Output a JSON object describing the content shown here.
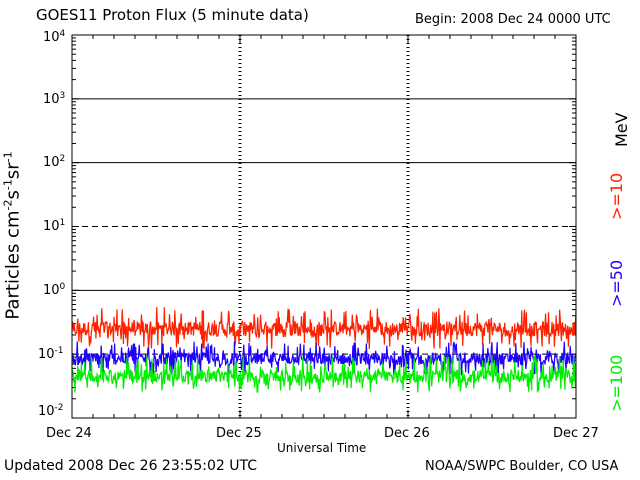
{
  "header": {
    "title": "GOES11 Proton Flux (5 minute data)",
    "begin": "Begin: 2008 Dec 24 0000 UTC"
  },
  "footer": {
    "updated": "Updated 2008 Dec 26 23:55:02 UTC",
    "credit": "NOAA/SWPC Boulder, CO USA"
  },
  "axes": {
    "xlabel": "Universal Time",
    "ylabel_main": "Particles cm",
    "ylabel_exp1": "-2",
    "ylabel_s": "s",
    "ylabel_exp2": "-1",
    "ylabel_sr": "sr",
    "ylabel_exp3": "-1",
    "x_ticks": [
      "Dec 24",
      "Dec 25",
      "Dec 26",
      "Dec 27"
    ],
    "y_ticks": [
      {
        "base": "10",
        "exp": "4"
      },
      {
        "base": "10",
        "exp": "3"
      },
      {
        "base": "10",
        "exp": "2"
      },
      {
        "base": "10",
        "exp": "1"
      },
      {
        "base": "10",
        "exp": "0"
      },
      {
        "base": "10",
        "exp": "-1"
      },
      {
        "base": "10",
        "exp": "-2"
      }
    ]
  },
  "legend": {
    "unit": "MeV",
    "items": [
      {
        "label": ">=10",
        "color": "#ff2000"
      },
      {
        "label": ">=50",
        "color": "#2000ff"
      },
      {
        "label": ">=100",
        "color": "#00ee00"
      }
    ]
  },
  "chart_data": {
    "type": "line",
    "title": "GOES11 Proton Flux (5 minute data)",
    "xlabel": "Universal Time",
    "ylabel": "Particles cm-2s-1sr-1",
    "y_scale": "log",
    "ylim": [
      0.01,
      10000
    ],
    "xlim": [
      "2008-12-24 00:00",
      "2008-12-27 00:00"
    ],
    "x_ticks": [
      "Dec 24",
      "Dec 25",
      "Dec 26",
      "Dec 27"
    ],
    "reference_lines": [
      {
        "y": 1000,
        "style": "solid"
      },
      {
        "y": 100,
        "style": "solid"
      },
      {
        "y": 10,
        "style": "dashed"
      },
      {
        "y": 1,
        "style": "solid"
      },
      {
        "y": 0.1,
        "style": "dashed"
      }
    ],
    "series": [
      {
        "name": ">=10 MeV",
        "color": "#ff2000",
        "typical": 0.25,
        "min": 0.12,
        "max": 0.55
      },
      {
        "name": ">=50 MeV",
        "color": "#2000ff",
        "typical": 0.085,
        "min": 0.045,
        "max": 0.16
      },
      {
        "name": ">=100 MeV",
        "color": "#00ee00",
        "typical": 0.045,
        "min": 0.025,
        "max": 0.095
      }
    ]
  }
}
